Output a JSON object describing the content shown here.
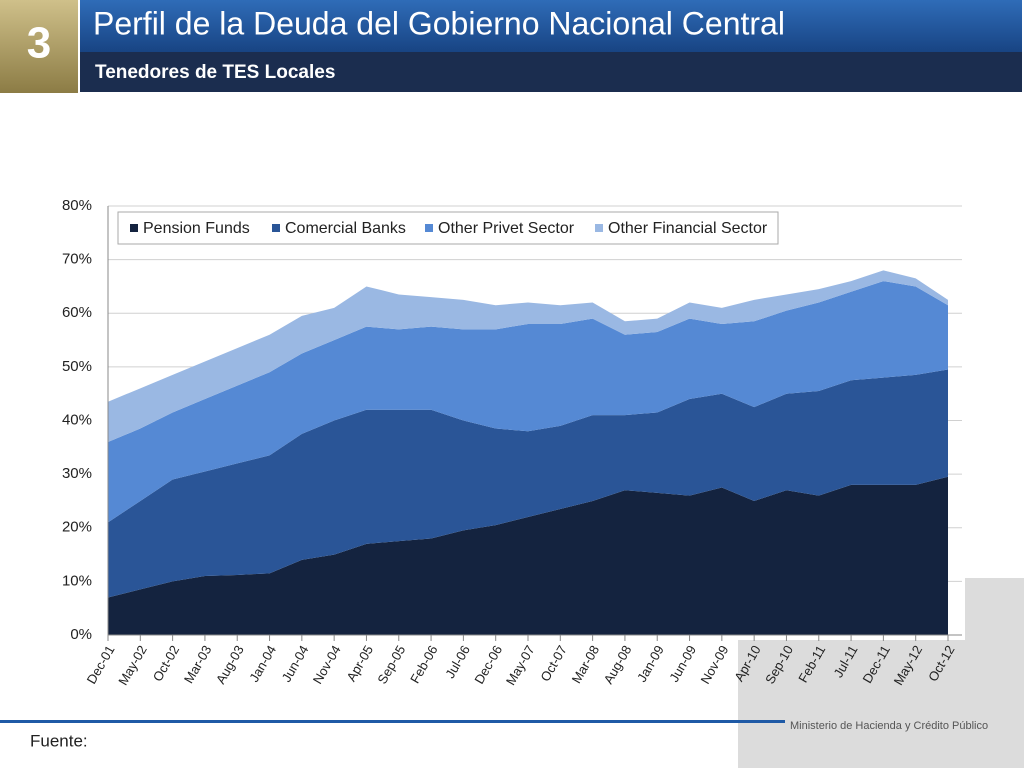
{
  "header": {
    "number": "3",
    "title": "Perfil de la Deuda del Gobierno Nacional Central",
    "subtitle": "Tenedores de TES Locales"
  },
  "chart_data": {
    "type": "stacked-area",
    "categories": [
      "Dec-01",
      "May-02",
      "Oct-02",
      "Mar-03",
      "Aug-03",
      "Jan-04",
      "Jun-04",
      "Nov-04",
      "Apr-05",
      "Sep-05",
      "Feb-06",
      "Jul-06",
      "Dec-06",
      "May-07",
      "Oct-07",
      "Mar-08",
      "Aug-08",
      "Jan-09",
      "Jun-09",
      "Nov-09",
      "Apr-10",
      "Sep-10",
      "Feb-11",
      "Jul-11",
      "Dec-11",
      "May-12",
      "Oct-12"
    ],
    "series": [
      {
        "name": "Pension Funds",
        "color": "#14233f",
        "values": [
          7,
          8.5,
          10,
          11,
          11.2,
          11.5,
          14,
          15,
          17,
          17.5,
          18,
          19.5,
          20.5,
          22,
          23.5,
          25,
          27,
          26.5,
          26,
          27.5,
          25,
          27,
          26,
          28,
          28,
          28,
          29.5
        ]
      },
      {
        "name": "Comercial Banks",
        "color": "#2a5597",
        "values": [
          14,
          16.5,
          19,
          19.5,
          20.8,
          22,
          23.5,
          25,
          25,
          24.5,
          24,
          20.5,
          18,
          16,
          15.5,
          16,
          14,
          15,
          18,
          17.5,
          17.5,
          18,
          19.5,
          19.5,
          20,
          20.5,
          20
        ]
      },
      {
        "name": "Other Privet Sector",
        "color": "#5589d4",
        "values": [
          15,
          13.5,
          12.5,
          13.5,
          14.5,
          15.5,
          15,
          15,
          15.5,
          15,
          15.5,
          17,
          18.5,
          20,
          19,
          18,
          15,
          15,
          15,
          13,
          16,
          15.5,
          16.5,
          16.5,
          18,
          16.5,
          12
        ]
      },
      {
        "name": "Other Financial Sector",
        "color": "#9ab8e3",
        "values": [
          7.5,
          7.5,
          7,
          7,
          7,
          7,
          7,
          6,
          7.5,
          6.5,
          5.5,
          5.5,
          4.5,
          4,
          3.5,
          3,
          2.5,
          2.5,
          3,
          3,
          4,
          3,
          2.5,
          2,
          2,
          1.5,
          1
        ]
      }
    ],
    "ylim": [
      0,
      80
    ],
    "yticks": [
      {
        "value": 0,
        "label": "0%"
      },
      {
        "value": 10,
        "label": "10%"
      },
      {
        "value": 20,
        "label": "20%"
      },
      {
        "value": 30,
        "label": "30%"
      },
      {
        "value": 40,
        "label": "40%"
      },
      {
        "value": 50,
        "label": "50%"
      },
      {
        "value": 60,
        "label": "60%"
      },
      {
        "value": 70,
        "label": "70%"
      },
      {
        "value": 80,
        "label": "80%"
      }
    ],
    "grid": true,
    "legend": "top-left"
  },
  "footer": {
    "source": "Fuente:",
    "ministry": "Ministerio de Hacienda y Crédito Público"
  }
}
